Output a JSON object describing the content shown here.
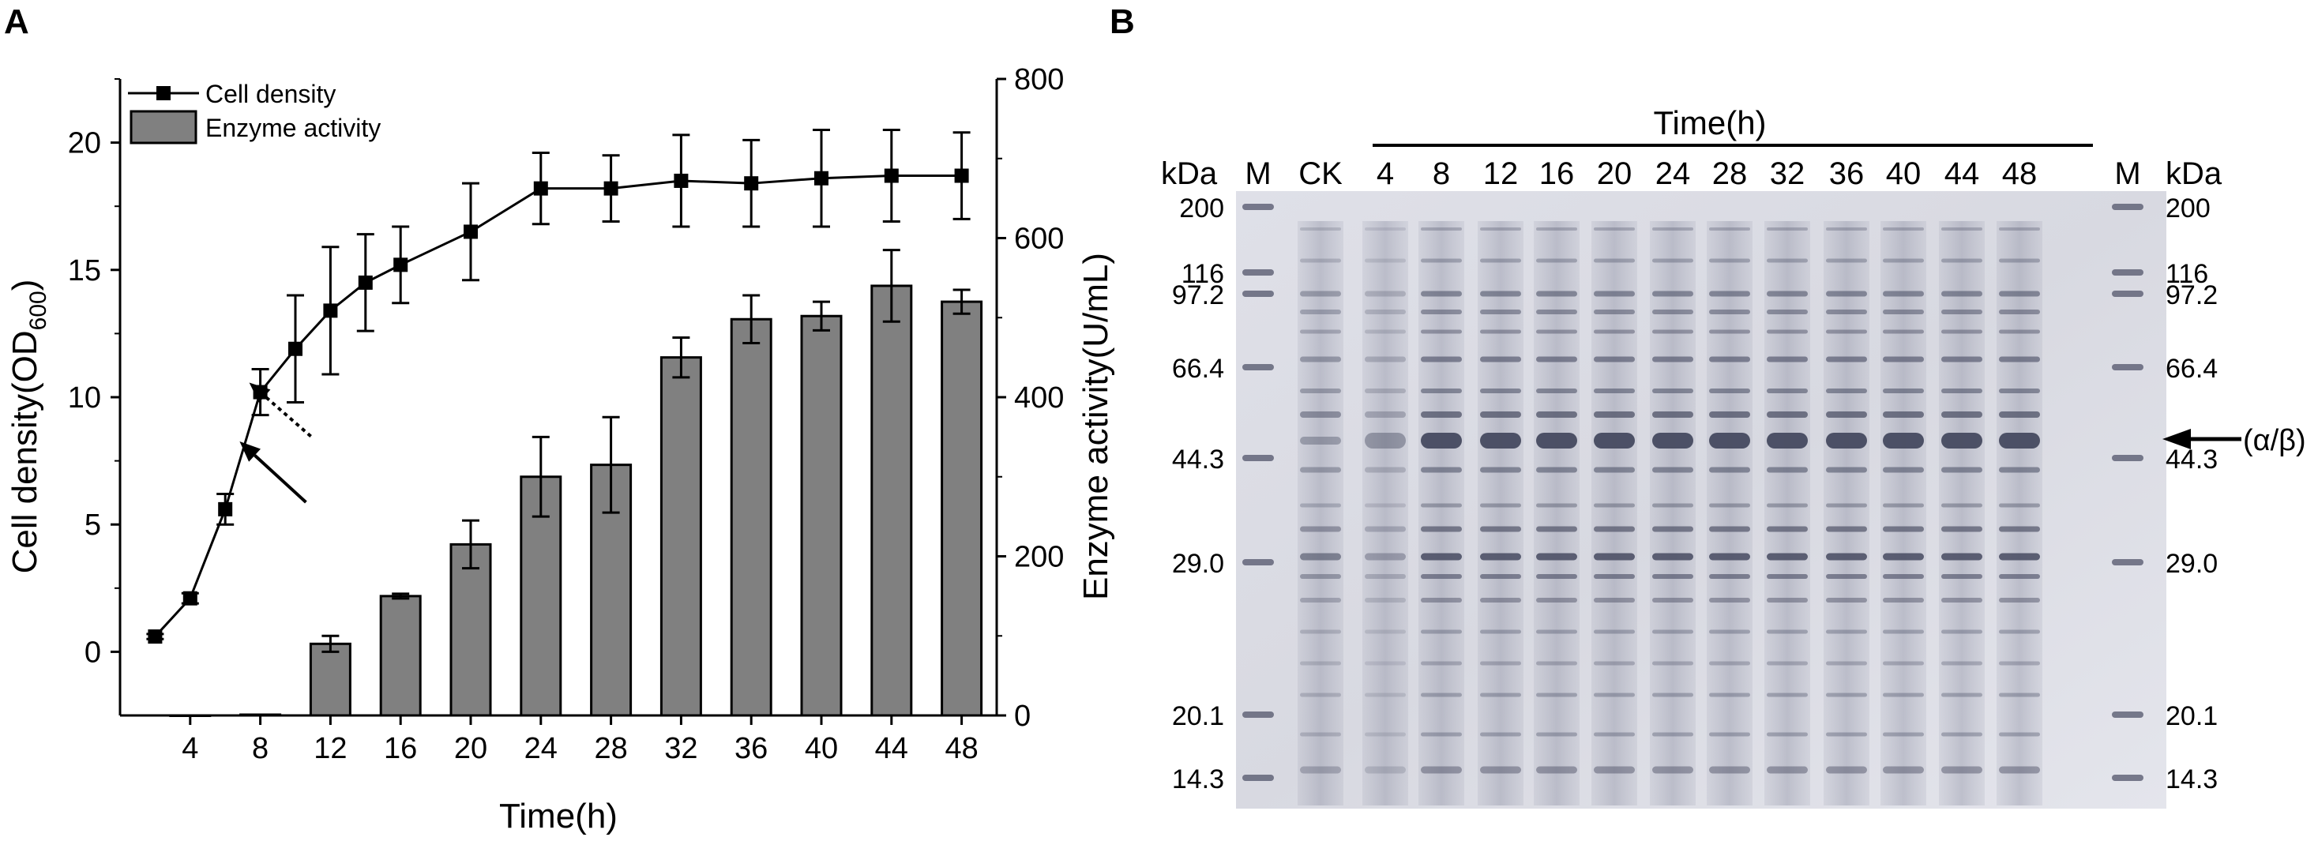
{
  "panels": {
    "a_label": "A",
    "b_label": "B"
  },
  "chart_data": [
    {
      "type": "bar",
      "panel": "A",
      "title": "",
      "xlabel": "Time(h)",
      "ylabel_left": "Cell density(OD600)",
      "ylabel_left_main": "Cell density(OD",
      "ylabel_left_sub": "600",
      "ylabel_left_close": ")",
      "ylabel_right": "Enzyme activity(U/mL)",
      "x_ticks": [
        "4",
        "8",
        "12",
        "16",
        "20",
        "24",
        "28",
        "32",
        "36",
        "40",
        "44",
        "48"
      ],
      "xlim": [
        0,
        50
      ],
      "ylim_left": [
        -2.5,
        22.5
      ],
      "ylim_right": [
        0,
        800
      ],
      "y_ticks_left": [
        0,
        5,
        10,
        15,
        20
      ],
      "y_ticks_right": [
        0,
        200,
        400,
        600,
        800
      ],
      "grid": false,
      "legend_position": "top-left",
      "legend": [
        "Cell density",
        "Enzyme activity"
      ],
      "series": [
        {
          "name": "Cell density",
          "type": "line",
          "axis": "left",
          "color": "#000000",
          "marker": "square",
          "x": [
            2,
            4,
            6,
            8,
            10,
            12,
            14,
            16,
            20,
            24,
            28,
            32,
            36,
            40,
            44,
            48
          ],
          "values": [
            0.6,
            2.1,
            5.6,
            10.2,
            11.9,
            13.4,
            14.5,
            15.2,
            16.5,
            18.2,
            18.2,
            18.5,
            18.4,
            18.6,
            18.7,
            18.7
          ],
          "errors": [
            0.1,
            0.2,
            0.6,
            0.9,
            2.1,
            2.5,
            1.9,
            1.5,
            1.9,
            1.4,
            1.3,
            1.8,
            1.7,
            1.9,
            1.8,
            1.7
          ]
        },
        {
          "name": "Enzyme activity",
          "type": "bar",
          "axis": "right",
          "color": "#808080",
          "x": [
            4,
            8,
            12,
            16,
            20,
            24,
            28,
            32,
            36,
            40,
            44,
            48
          ],
          "values": [
            0,
            1,
            90,
            150,
            215,
            300,
            315,
            450,
            498,
            502,
            540,
            520
          ],
          "errors": [
            0,
            0,
            10,
            3,
            30,
            50,
            60,
            25,
            30,
            18,
            45,
            15
          ]
        }
      ],
      "annotations": [
        {
          "type": "arrow",
          "style": "solid",
          "target_x": 7,
          "target_y": 8.2
        },
        {
          "type": "arrow",
          "style": "dotted",
          "target_x": 8,
          "target_y": 10.2
        }
      ]
    },
    {
      "type": "gel",
      "panel": "B",
      "header": "Time(h)",
      "lanes": [
        "M",
        "CK",
        "4",
        "8",
        "12",
        "16",
        "20",
        "24",
        "28",
        "32",
        "36",
        "40",
        "44",
        "48",
        "M"
      ],
      "unit_label": "kDa",
      "markers_kda": [
        "200",
        "116",
        "97.2",
        "66.4",
        "44.3",
        "29.0",
        "20.1",
        "14.3"
      ],
      "band_label": "(α/β)"
    }
  ]
}
